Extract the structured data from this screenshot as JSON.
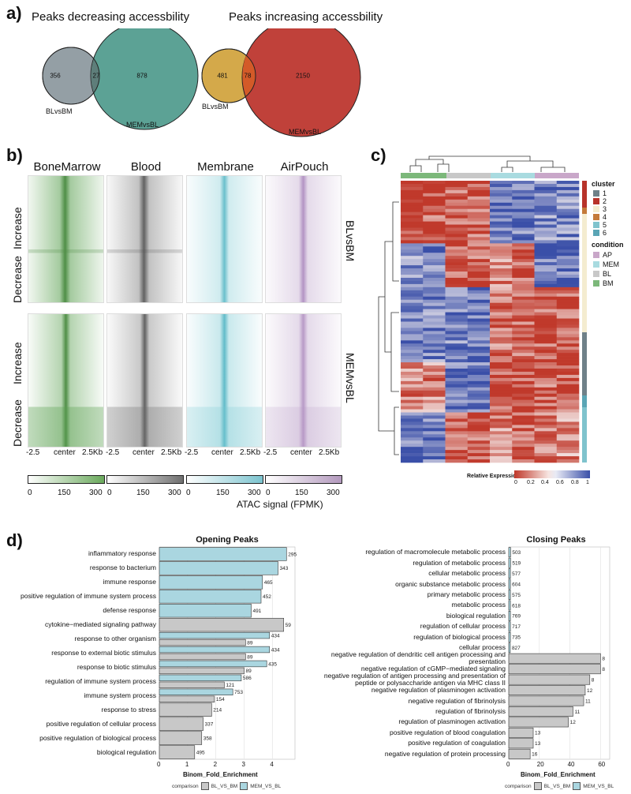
{
  "panel_a": {
    "label": "a)",
    "decreasing": {
      "title": "Peaks decreasing accessbility",
      "left_only": "356",
      "overlap": "27",
      "right_only": "878",
      "left_label": "BLvsBM",
      "right_label": "MEMvsBL",
      "left_color": "#8e9aa0",
      "right_color": "#4e9a8c"
    },
    "increasing": {
      "title": "Peaks increasing accessbility",
      "left_only": "481",
      "overlap": "78",
      "right_only": "2150",
      "left_label": "BLvsBM",
      "right_label": "MEMvsBL",
      "left_color": "#d4a94a",
      "right_color": "#c0413a"
    }
  },
  "panel_b": {
    "label": "b)",
    "columns": [
      {
        "name": "BoneMarrow",
        "color": "#6aa95c"
      },
      {
        "name": "Blood",
        "color": "#707070"
      },
      {
        "name": "Membrane",
        "color": "#7cc4cf"
      },
      {
        "name": "AirPouch",
        "color": "#b399bd"
      }
    ],
    "row_labels": [
      "Increase",
      "Decrease",
      "Increase",
      "Decrease"
    ],
    "side_labels": [
      "BLvsBM",
      "MEMvsBL"
    ],
    "x_left": "-2.5",
    "x_center": "center",
    "x_right": "2.5Kb",
    "colorbar_ticks": [
      "0",
      "150",
      "300"
    ],
    "colorbar_title": "ATAC signal (FPMK)"
  },
  "panel_c": {
    "label": "c)",
    "cluster_title": "cluster",
    "clusters": [
      {
        "name": "1",
        "color": "#6f8189"
      },
      {
        "name": "2",
        "color": "#b8332a"
      },
      {
        "name": "3",
        "color": "#f4ecd0"
      },
      {
        "name": "4",
        "color": "#c47a3a"
      },
      {
        "name": "5",
        "color": "#7fc3cd"
      },
      {
        "name": "6",
        "color": "#5aa5b5"
      }
    ],
    "condition_title": "condition",
    "conditions": [
      {
        "name": "AP",
        "color": "#c9a7c9"
      },
      {
        "name": "MEM",
        "color": "#a9dbe0"
      },
      {
        "name": "BL",
        "color": "#c8c8c8"
      },
      {
        "name": "BM",
        "color": "#7cb87a"
      }
    ],
    "colorbar_title": "Relative Expression",
    "colorbar_ticks": [
      "0",
      "0.2",
      "0.4",
      "0.6",
      "0.8",
      "1"
    ],
    "low_color": "#c0392b",
    "high_color": "#3a4fa8"
  },
  "panel_d": {
    "label": "d)",
    "x_axis_label": "Binom_Fold_Enrichment",
    "legend_title": "comparison",
    "legend": [
      {
        "name": "BL_VS_BM",
        "color": "#c8c8c8"
      },
      {
        "name": "MEM_VS_BL",
        "color": "#aad6e0"
      }
    ],
    "opening": {
      "title": "Opening Peaks",
      "x_ticks": [
        "0",
        "1",
        "2",
        "3",
        "4"
      ],
      "x_max": 4.8,
      "bars": [
        {
          "label": "inflammatory response",
          "value": 4.5,
          "count": "295",
          "series": "MEM_VS_BL"
        },
        {
          "label": "response to bacterium",
          "value": 4.2,
          "count": "343",
          "series": "MEM_VS_BL"
        },
        {
          "label": "immune response",
          "value": 3.65,
          "count": "465",
          "series": "MEM_VS_BL"
        },
        {
          "label": "positive regulation of immune system process",
          "value": 3.6,
          "count": "452",
          "series": "MEM_VS_BL"
        },
        {
          "label": "defense response",
          "value": 3.25,
          "count": "491",
          "series": "MEM_VS_BL"
        },
        {
          "label": "cytokine−mediated signaling pathway",
          "value": 4.4,
          "count": "59",
          "series": "BL_VS_BM"
        },
        {
          "label": "response to other organism",
          "value": 3.9,
          "count": "434",
          "series": "MEM_VS_BL"
        },
        {
          "label": "response to other organism",
          "value": 3.05,
          "count": "89",
          "series": "BL_VS_BM"
        },
        {
          "label": "response to external biotic stimulus",
          "value": 3.9,
          "count": "434",
          "series": "MEM_VS_BL"
        },
        {
          "label": "response to external biotic stimulus",
          "value": 3.05,
          "count": "89",
          "series": "BL_VS_BM"
        },
        {
          "label": "response to biotic stimulus",
          "value": 3.8,
          "count": "435",
          "series": "MEM_VS_BL"
        },
        {
          "label": "response to biotic stimulus",
          "value": 3.0,
          "count": "89",
          "series": "BL_VS_BM"
        },
        {
          "label": "regulation of immune system process",
          "value": 2.9,
          "count": "586",
          "series": "MEM_VS_BL"
        },
        {
          "label": "regulation of immune system process",
          "value": 2.3,
          "count": "121",
          "series": "BL_VS_BM"
        },
        {
          "label": "immune system process",
          "value": 2.6,
          "count": "753",
          "series": "MEM_VS_BL"
        },
        {
          "label": "immune system process",
          "value": 1.95,
          "count": "154",
          "series": "BL_VS_BM"
        },
        {
          "label": "response to stress",
          "value": 1.85,
          "count": "214",
          "series": "BL_VS_BM"
        },
        {
          "label": "positive regulation of cellular process",
          "value": 1.55,
          "count": "337",
          "series": "BL_VS_BM"
        },
        {
          "label": "positive regulation of biological process",
          "value": 1.5,
          "count": "358",
          "series": "BL_VS_BM"
        },
        {
          "label": "biological regulation",
          "value": 1.25,
          "count": "495",
          "series": "BL_VS_BM"
        }
      ],
      "label_rows": [
        "inflammatory response",
        "response to bacterium",
        "immune response",
        "positive regulation of immune system process",
        "defense response",
        "cytokine−mediated signaling pathway",
        "response to other organism",
        "response to external biotic stimulus",
        "response to biotic stimulus",
        "regulation of immune system process",
        "immune system process",
        "response to stress",
        "positive regulation of cellular process",
        "positive regulation of biological process",
        "biological regulation"
      ]
    },
    "closing": {
      "title": "Closing Peaks",
      "x_ticks": [
        "0",
        "20",
        "40",
        "60"
      ],
      "x_max": 66,
      "bars": [
        {
          "label": "regulation of macromolecule metabolic process",
          "value": 1.2,
          "count": "503",
          "series": "MEM_VS_BL"
        },
        {
          "label": "regulation of metabolic process",
          "value": 1.2,
          "count": "519",
          "series": "MEM_VS_BL"
        },
        {
          "label": "cellular metabolic process",
          "value": 1.1,
          "count": "577",
          "series": "MEM_VS_BL"
        },
        {
          "label": "organic substance metabolic process",
          "value": 1.1,
          "count": "604",
          "series": "MEM_VS_BL"
        },
        {
          "label": "primary metabolic process",
          "value": 1.1,
          "count": "575",
          "series": "MEM_VS_BL"
        },
        {
          "label": "metabolic process",
          "value": 1.1,
          "count": "618",
          "series": "MEM_VS_BL"
        },
        {
          "label": "biological regulation",
          "value": 1.1,
          "count": "769",
          "series": "MEM_VS_BL"
        },
        {
          "label": "regulation of cellular process",
          "value": 1.1,
          "count": "717",
          "series": "MEM_VS_BL"
        },
        {
          "label": "regulation of biological process",
          "value": 1.1,
          "count": "735",
          "series": "MEM_VS_BL"
        },
        {
          "label": "cellular process",
          "value": 1.0,
          "count": "827",
          "series": "MEM_VS_BL"
        },
        {
          "label": "negative regulation of dendritic cell antigen processing and presentation",
          "value": 60,
          "count": "8",
          "series": "BL_VS_BM"
        },
        {
          "label": "negative regulation of cGMP−mediated signaling",
          "value": 60,
          "count": "8",
          "series": "BL_VS_BM"
        },
        {
          "label": "negative regulation of antigen processing and presentation of peptide or polysaccharide antigen via MHC class II",
          "value": 53,
          "count": "8",
          "series": "BL_VS_BM"
        },
        {
          "label": "negative regulation of plasminogen activation",
          "value": 50,
          "count": "12",
          "series": "BL_VS_BM"
        },
        {
          "label": "negative regulation of fibrinolysis",
          "value": 49,
          "count": "11",
          "series": "BL_VS_BM"
        },
        {
          "label": "regulation of fibrinolysis",
          "value": 42,
          "count": "11",
          "series": "BL_VS_BM"
        },
        {
          "label": "regulation of plasminogen activation",
          "value": 39,
          "count": "12",
          "series": "BL_VS_BM"
        },
        {
          "label": "positive regulation of blood coagulation",
          "value": 16,
          "count": "13",
          "series": "BL_VS_BM"
        },
        {
          "label": "positive regulation of coagulation",
          "value": 16,
          "count": "13",
          "series": "BL_VS_BM"
        },
        {
          "label": "negative regulation of protein processing",
          "value": 14,
          "count": "16",
          "series": "BL_VS_BM"
        }
      ],
      "label_rows": [
        "regulation of macromolecule metabolic process",
        "regulation of metabolic process",
        "cellular metabolic process",
        "organic substance metabolic process",
        "primary metabolic process",
        "metabolic process",
        "biological regulation",
        "regulation of cellular process",
        "regulation of biological process",
        "cellular process",
        "negative regulation of dendritic cell antigen processing and presentation",
        "negative regulation of cGMP−mediated signaling",
        "negative regulation of antigen processing and presentation of peptide or polysaccharide antigen via MHC class II",
        "negative regulation of plasminogen activation",
        "negative regulation of fibrinolysis",
        "regulation of fibrinolysis",
        "regulation of plasminogen activation",
        "positive regulation of blood coagulation",
        "positive regulation of coagulation",
        "negative regulation of protein processing"
      ]
    }
  },
  "chart_data": [
    {
      "type": "bar",
      "title": "Opening Peaks",
      "xlabel": "Binom_Fold_Enrichment",
      "ylabel": "",
      "xlim": [
        0,
        4.8
      ],
      "series": [
        {
          "name": "MEM_VS_BL",
          "values": [
            4.5,
            4.2,
            3.65,
            3.6,
            3.25,
            3.9,
            3.9,
            3.8,
            2.9,
            2.6
          ]
        },
        {
          "name": "BL_VS_BM",
          "values": [
            4.4,
            3.05,
            3.05,
            3.0,
            2.3,
            1.95,
            1.85,
            1.55,
            1.5,
            1.25
          ]
        }
      ]
    },
    {
      "type": "bar",
      "title": "Closing Peaks",
      "xlabel": "Binom_Fold_Enrichment",
      "ylabel": "",
      "xlim": [
        0,
        66
      ],
      "series": [
        {
          "name": "MEM_VS_BL",
          "values": [
            1.2,
            1.2,
            1.1,
            1.1,
            1.1,
            1.1,
            1.1,
            1.1,
            1.1,
            1.0
          ]
        },
        {
          "name": "BL_VS_BM",
          "values": [
            60,
            60,
            53,
            50,
            49,
            42,
            39,
            16,
            16,
            14
          ]
        }
      ]
    }
  ]
}
